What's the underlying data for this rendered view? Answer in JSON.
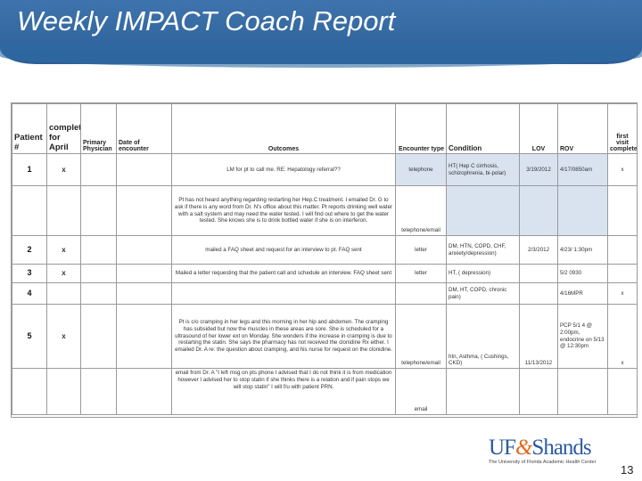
{
  "title": "Weekly IMPACT Coach Report",
  "headers": {
    "patient": "Patient #",
    "completed": "completed for April",
    "physician": "Primary Physician",
    "date": "Date of encounter",
    "outcomes": "Outcomes",
    "encounter_type": "Encounter type",
    "condition": "Condition",
    "lov": "LOV",
    "rov": "ROV",
    "first_visit": "first visit completed"
  },
  "rows": [
    {
      "patient": "1",
      "completed": "x",
      "physician": "",
      "date": "",
      "outcome": "LM for pt to call me. RE: Hepatology referral??",
      "encounter": "telephone",
      "condition": "HT( Hep C cirrhosis, schizophrenia, bi-polar)",
      "lov": "3/19/2012",
      "rov": "4/17/0850am",
      "first": "x"
    },
    {
      "patient": "",
      "completed": "",
      "physician": "",
      "date": "",
      "outcome": "Pt has not heard anything regarding restarting her Hep.C treatment. I emailed Dr. G to ask if there is any word from Dr. N's office about this matter. Pt reports drinking well water with a salt system and may need the water tested. I will find out where to get the water tested. She knows she is to drink bottled water if she is on interferon.",
      "encounter": "telephone/email",
      "condition": "",
      "lov": "",
      "rov": "",
      "first": ""
    },
    {
      "patient": "2",
      "completed": "x",
      "physician": "",
      "date": "",
      "outcome": "mailed a FAQ sheet and request for an interview to pt. FAQ sent",
      "encounter": "letter",
      "condition": "DM, HTN, COPD, CHF, anxiety/depression)",
      "lov": "2/3/2012",
      "rov": "4/23/ 1:30pm",
      "first": ""
    },
    {
      "patient": "3",
      "completed": "x",
      "physician": "",
      "date": "",
      "outcome": "Mailed a letter requesting that the patient call and schedule an interview. FAQ sheet sent",
      "encounter": "letter",
      "condition": "HT, ( depression)",
      "lov": "",
      "rov": "5/2 0930",
      "first": ""
    },
    {
      "patient": "4",
      "completed": "",
      "physician": "",
      "date": "",
      "outcome": "",
      "encounter": "",
      "condition": "DM, HT, COPD, chronic pain)",
      "lov": "",
      "rov": "4/16MPR",
      "first": "x"
    },
    {
      "patient": "5",
      "completed": "x",
      "physician": "",
      "date": "",
      "outcome": "Pt is c/o cramping in her legs and this morning in her hip and abdomen. The cramping has subsided but now the muscles in these areas are sore. She is scheduled for a ultrasound of her lower ext on Monday. She wonders if the increase in cramping is due to restarting the statin. She says the pharmacy has not received the clonidine Rx either. I emailed Dr. A re: the question about cramping, and his nurse for request on the clonidine.",
      "encounter": "telephone/email",
      "condition": "htn, Asthma, ( Cushings, CKD)",
      "lov": "11/13/2012",
      "rov": "PCP 5/1 4 @ 2:00pm, endocrine on 5/13 @ 12:30pm",
      "first": "x"
    },
    {
      "patient": "",
      "completed": "",
      "physician": "",
      "date": "",
      "outcome": "email from Dr. A \"I left msg on pts phone I advised that I do not think it is from medication however I advised her to stop statin if she thinks there is a relation and if pain stops we will stop statin\" I will f/u with patient PRN.",
      "encounter": "email",
      "condition": "",
      "lov": "",
      "rov": "",
      "first": ""
    }
  ],
  "logo": {
    "main_a": "UF",
    "amp": "&",
    "main_b": "Shands",
    "sub": "The University of Florida Academic Health Center"
  },
  "page_number": "13"
}
